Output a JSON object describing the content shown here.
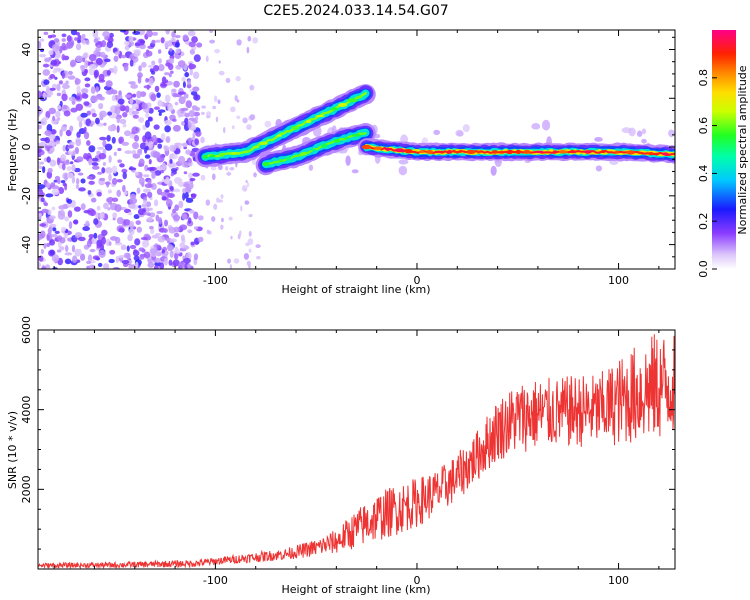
{
  "figure": {
    "title": "C2E5.2024.033.14.54.G07"
  },
  "chart_data": [
    {
      "type": "heatmap",
      "xlabel": "Height of straight line (km)",
      "ylabel": "Frequency (Hz)",
      "xlim": [
        -188,
        128
      ],
      "ylim": [
        -50,
        48
      ],
      "x_ticks": [
        -100,
        0,
        100
      ],
      "y_ticks": [
        -40,
        -20,
        0,
        20,
        40
      ],
      "colorbar": {
        "label": "Normalized spectral amplitude",
        "range": [
          0,
          1
        ],
        "ticks": [
          0.0,
          0.2,
          0.4,
          0.6,
          0.8
        ],
        "colormap": "rainbow (white-violet-blue-cyan-green-yellow-orange-red-magenta)"
      },
      "features": [
        {
          "name": "noise region",
          "x_range": [
            -188,
            -108
          ],
          "y_range": [
            -50,
            48
          ],
          "amplitude": "low (0.1-0.3)"
        },
        {
          "name": "upper rising trace",
          "points": [
            [
              -105,
              -4
            ],
            [
              -85,
              -2
            ],
            [
              -70,
              4
            ],
            [
              -55,
              10
            ],
            [
              -40,
              16
            ],
            [
              -25,
              22
            ]
          ],
          "amplitude": "high"
        },
        {
          "name": "lower rising trace",
          "points": [
            [
              -75,
              -7
            ],
            [
              -60,
              -4
            ],
            [
              -48,
              0
            ],
            [
              -38,
              3
            ],
            [
              -25,
              6
            ]
          ],
          "amplitude": "high"
        },
        {
          "name": "flat trace",
          "points": [
            [
              -25,
              0
            ],
            [
              0,
              -2
            ],
            [
              50,
              -2
            ],
            [
              100,
              -2
            ],
            [
              128,
              -3
            ]
          ],
          "amplitude": "very high (0.8-1.0)"
        }
      ]
    },
    {
      "type": "line",
      "xlabel": "Height of straight line (km)",
      "ylabel": "SNR (10 * v/v)",
      "xlim": [
        -188,
        128
      ],
      "ylim": [
        0,
        6000
      ],
      "x_ticks": [
        -100,
        0,
        100
      ],
      "y_ticks": [
        2000,
        4000,
        6000
      ],
      "series": [
        {
          "color": "#ee3333",
          "x": [
            -188,
            -150,
            -110,
            -95,
            -80,
            -65,
            -50,
            -40,
            -30,
            -20,
            -10,
            0,
            10,
            20,
            30,
            40,
            50,
            60,
            70,
            80,
            90,
            100,
            110,
            120,
            128
          ],
          "min": [
            30,
            30,
            50,
            120,
            170,
            230,
            320,
            380,
            520,
            680,
            850,
            1050,
            1350,
            1700,
            2200,
            2700,
            2900,
            3000,
            3050,
            3050,
            3050,
            3100,
            3150,
            3200,
            3400
          ],
          "max": [
            150,
            170,
            230,
            320,
            420,
            520,
            750,
            1000,
            1500,
            1900,
            2150,
            2300,
            2500,
            2900,
            3500,
            4300,
            4700,
            4800,
            4800,
            4900,
            4900,
            5300,
            5700,
            6000,
            5900
          ]
        }
      ]
    }
  ]
}
